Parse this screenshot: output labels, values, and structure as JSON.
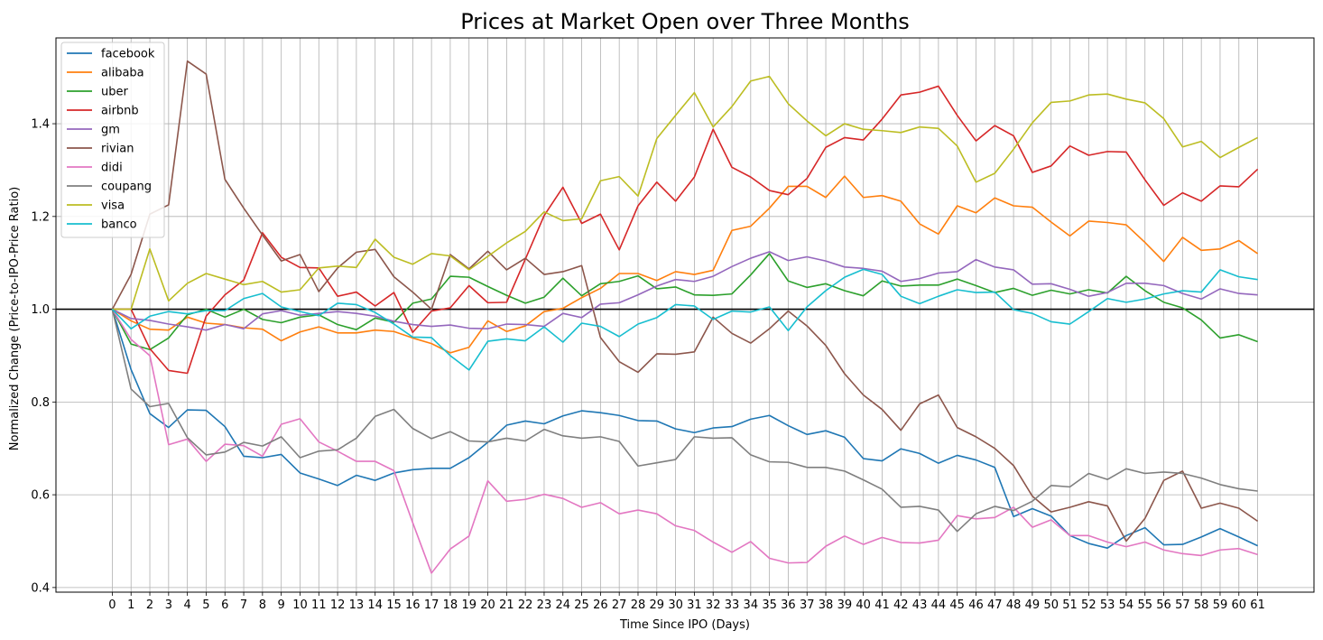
{
  "chart_data": {
    "type": "line",
    "title": "Prices at Market Open over Three Months",
    "xlabel": "Time Since IPO (Days)",
    "ylabel": "Normalized Change (Price-to-IPO-Price Ratio)",
    "xlim": [
      -3,
      64
    ],
    "ylim": [
      0.39,
      1.585
    ],
    "yticks": [
      0.4,
      0.6,
      0.8,
      1.0,
      1.2,
      1.4
    ],
    "ytick_labels": [
      "0.4",
      "0.6",
      "0.8",
      "1.0",
      "1.2",
      "1.4"
    ],
    "x": [
      0,
      1,
      2,
      3,
      4,
      5,
      6,
      7,
      8,
      9,
      10,
      11,
      12,
      13,
      14,
      15,
      16,
      17,
      18,
      19,
      20,
      21,
      22,
      23,
      24,
      25,
      26,
      27,
      28,
      29,
      30,
      31,
      32,
      33,
      34,
      35,
      36,
      37,
      38,
      39,
      40,
      41,
      42,
      43,
      44,
      45,
      46,
      47,
      48,
      49,
      50,
      51,
      52,
      53,
      54,
      55,
      56,
      57,
      58,
      59,
      60,
      61
    ],
    "x_tick_labels": [
      "0",
      "1",
      "2",
      "3",
      "4",
      "5",
      "6",
      "7",
      "8",
      "9",
      "10",
      "11",
      "12",
      "13",
      "14",
      "15",
      "16",
      "17",
      "18",
      "19",
      "20",
      "21",
      "22",
      "23",
      "24",
      "25",
      "26",
      "27",
      "28",
      "29",
      "30",
      "31",
      "32",
      "33",
      "34",
      "35",
      "36",
      "37",
      "38",
      "39",
      "40",
      "41",
      "42",
      "43",
      "44",
      "45",
      "46",
      "47",
      "48",
      "49",
      "50",
      "51",
      "52",
      "53",
      "54",
      "55",
      "56",
      "57",
      "58",
      "59",
      "60",
      "61"
    ],
    "grid": true,
    "legend_position": "upper-left",
    "reference_line": 1.0,
    "series": [
      {
        "name": "facebook",
        "color": "#1f77b4",
        "values": [
          1.0,
          0.87,
          0.775,
          0.745,
          0.783,
          0.782,
          0.747,
          0.683,
          0.68,
          0.687,
          0.647,
          0.634,
          0.62,
          0.642,
          0.631,
          0.647,
          0.654,
          0.657,
          0.657,
          0.68,
          0.713,
          0.75,
          0.759,
          0.753,
          0.77,
          0.781,
          0.777,
          0.771,
          0.76,
          0.759,
          0.742,
          0.734,
          0.744,
          0.747,
          0.763,
          0.771,
          0.749,
          0.73,
          0.738,
          0.724,
          0.678,
          0.673,
          0.699,
          0.689,
          0.668,
          0.685,
          0.675,
          0.659,
          0.553,
          0.57,
          0.554,
          0.512,
          0.495,
          0.485,
          0.512,
          0.529,
          0.492,
          0.493,
          0.509,
          0.527,
          0.509,
          0.49
        ]
      },
      {
        "name": "alibaba",
        "color": "#ff7f0e",
        "values": [
          1.0,
          0.975,
          0.957,
          0.955,
          0.983,
          0.97,
          0.967,
          0.96,
          0.957,
          0.932,
          0.951,
          0.962,
          0.949,
          0.949,
          0.955,
          0.952,
          0.938,
          0.926,
          0.906,
          0.918,
          0.975,
          0.952,
          0.964,
          0.995,
          1.002,
          1.025,
          1.045,
          1.077,
          1.077,
          1.062,
          1.081,
          1.075,
          1.084,
          1.17,
          1.179,
          1.218,
          1.265,
          1.265,
          1.241,
          1.287,
          1.241,
          1.245,
          1.233,
          1.184,
          1.162,
          1.223,
          1.208,
          1.24,
          1.223,
          1.22,
          1.188,
          1.158,
          1.19,
          1.187,
          1.182,
          1.144,
          1.103,
          1.155,
          1.127,
          1.13,
          1.148,
          1.12
        ]
      },
      {
        "name": "uber",
        "color": "#2ca02c",
        "values": [
          1.0,
          0.925,
          0.913,
          0.938,
          0.988,
          1.0,
          0.983,
          1.0,
          0.978,
          0.971,
          0.983,
          0.988,
          0.967,
          0.956,
          0.981,
          0.972,
          1.013,
          1.022,
          1.071,
          1.069,
          1.049,
          1.03,
          1.013,
          1.026,
          1.067,
          1.029,
          1.055,
          1.06,
          1.072,
          1.044,
          1.048,
          1.031,
          1.03,
          1.033,
          1.074,
          1.12,
          1.061,
          1.047,
          1.055,
          1.04,
          1.029,
          1.061,
          1.05,
          1.052,
          1.052,
          1.065,
          1.051,
          1.036,
          1.045,
          1.03,
          1.041,
          1.033,
          1.042,
          1.035,
          1.071,
          1.04,
          1.015,
          1.003,
          0.977,
          0.938,
          0.945,
          0.93
        ]
      },
      {
        "name": "airbnb",
        "color": "#d62728",
        "values": [
          1.0,
          1.0,
          0.915,
          0.868,
          0.862,
          0.985,
          1.031,
          1.063,
          1.165,
          1.112,
          1.09,
          1.089,
          1.028,
          1.037,
          1.007,
          1.036,
          0.95,
          0.996,
          1.003,
          1.051,
          1.014,
          1.015,
          1.108,
          1.202,
          1.263,
          1.185,
          1.205,
          1.128,
          1.223,
          1.274,
          1.233,
          1.285,
          1.388,
          1.306,
          1.285,
          1.256,
          1.247,
          1.282,
          1.349,
          1.37,
          1.365,
          1.41,
          1.462,
          1.468,
          1.481,
          1.418,
          1.363,
          1.396,
          1.374,
          1.295,
          1.309,
          1.352,
          1.332,
          1.34,
          1.339,
          1.279,
          1.224,
          1.251,
          1.233,
          1.266,
          1.264,
          1.302
        ]
      },
      {
        "name": "gm",
        "color": "#9467bd",
        "values": [
          1.0,
          0.98,
          0.976,
          0.968,
          0.962,
          0.955,
          0.967,
          0.958,
          0.99,
          0.997,
          0.987,
          0.991,
          0.995,
          0.991,
          0.985,
          0.974,
          0.967,
          0.963,
          0.966,
          0.959,
          0.958,
          0.968,
          0.967,
          0.963,
          0.991,
          0.982,
          1.011,
          1.014,
          1.031,
          1.05,
          1.064,
          1.06,
          1.071,
          1.092,
          1.11,
          1.124,
          1.105,
          1.113,
          1.104,
          1.091,
          1.088,
          1.082,
          1.06,
          1.066,
          1.078,
          1.081,
          1.107,
          1.091,
          1.085,
          1.054,
          1.055,
          1.043,
          1.028,
          1.036,
          1.056,
          1.056,
          1.051,
          1.034,
          1.022,
          1.044,
          1.034,
          1.031
        ]
      },
      {
        "name": "rivian",
        "color": "#8c564b",
        "values": [
          1.0,
          1.075,
          1.205,
          1.225,
          1.535,
          1.507,
          1.28,
          1.218,
          1.16,
          1.104,
          1.118,
          1.038,
          1.089,
          1.123,
          1.129,
          1.07,
          1.037,
          1.0,
          1.118,
          1.087,
          1.125,
          1.085,
          1.11,
          1.075,
          1.081,
          1.094,
          0.939,
          0.887,
          0.864,
          0.904,
          0.903,
          0.908,
          0.983,
          0.948,
          0.927,
          0.958,
          0.996,
          0.964,
          0.922,
          0.861,
          0.815,
          0.784,
          0.739,
          0.796,
          0.815,
          0.745,
          0.725,
          0.7,
          0.663,
          0.597,
          0.563,
          0.573,
          0.585,
          0.576,
          0.5,
          0.549,
          0.631,
          0.651,
          0.571,
          0.582,
          0.571,
          0.543
        ]
      },
      {
        "name": "didi",
        "color": "#e377c2",
        "values": [
          1.0,
          0.935,
          0.9,
          0.708,
          0.72,
          0.672,
          0.709,
          0.706,
          0.683,
          0.752,
          0.764,
          0.714,
          0.694,
          0.672,
          0.672,
          0.652,
          0.54,
          0.431,
          0.483,
          0.511,
          0.63,
          0.586,
          0.59,
          0.601,
          0.592,
          0.573,
          0.583,
          0.559,
          0.567,
          0.559,
          0.533,
          0.523,
          0.498,
          0.476,
          0.499,
          0.463,
          0.453,
          0.454,
          0.489,
          0.511,
          0.493,
          0.508,
          0.497,
          0.496,
          0.502,
          0.555,
          0.548,
          0.551,
          0.573,
          0.53,
          0.546,
          0.512,
          0.512,
          0.498,
          0.488,
          0.498,
          0.481,
          0.473,
          0.469,
          0.481,
          0.484,
          0.471
        ]
      },
      {
        "name": "coupang",
        "color": "#7f7f7f",
        "values": [
          1.0,
          0.828,
          0.79,
          0.797,
          0.723,
          0.686,
          0.692,
          0.713,
          0.705,
          0.725,
          0.68,
          0.694,
          0.697,
          0.722,
          0.769,
          0.784,
          0.743,
          0.721,
          0.736,
          0.716,
          0.714,
          0.722,
          0.716,
          0.741,
          0.727,
          0.722,
          0.725,
          0.715,
          0.662,
          0.669,
          0.676,
          0.725,
          0.722,
          0.723,
          0.686,
          0.671,
          0.67,
          0.659,
          0.659,
          0.651,
          0.632,
          0.612,
          0.573,
          0.575,
          0.567,
          0.521,
          0.559,
          0.575,
          0.566,
          0.586,
          0.62,
          0.617,
          0.646,
          0.633,
          0.656,
          0.646,
          0.649,
          0.646,
          0.636,
          0.622,
          0.613,
          0.608
        ]
      },
      {
        "name": "visa",
        "color": "#bcbd22",
        "values": [
          1.0,
          1.0,
          1.13,
          1.018,
          1.056,
          1.077,
          1.065,
          1.053,
          1.06,
          1.037,
          1.042,
          1.089,
          1.093,
          1.09,
          1.151,
          1.112,
          1.097,
          1.12,
          1.115,
          1.085,
          1.114,
          1.143,
          1.168,
          1.21,
          1.191,
          1.195,
          1.277,
          1.286,
          1.244,
          1.368,
          1.418,
          1.467,
          1.393,
          1.437,
          1.492,
          1.502,
          1.443,
          1.406,
          1.374,
          1.4,
          1.388,
          1.385,
          1.381,
          1.393,
          1.39,
          1.352,
          1.274,
          1.293,
          1.345,
          1.402,
          1.446,
          1.449,
          1.462,
          1.464,
          1.453,
          1.445,
          1.411,
          1.35,
          1.362,
          1.327,
          1.349,
          1.37
        ]
      },
      {
        "name": "banco",
        "color": "#17becf",
        "values": [
          1.0,
          0.958,
          0.985,
          0.995,
          0.99,
          0.997,
          0.997,
          1.023,
          1.034,
          1.005,
          0.995,
          0.986,
          1.013,
          1.01,
          0.993,
          0.968,
          0.94,
          0.939,
          0.9,
          0.869,
          0.931,
          0.936,
          0.932,
          0.962,
          0.929,
          0.97,
          0.963,
          0.941,
          0.968,
          0.982,
          1.01,
          1.007,
          0.978,
          0.996,
          0.994,
          1.005,
          0.954,
          1.005,
          1.04,
          1.069,
          1.086,
          1.075,
          1.028,
          1.012,
          1.028,
          1.042,
          1.036,
          1.037,
          0.999,
          0.991,
          0.973,
          0.968,
          0.995,
          1.023,
          1.015,
          1.022,
          1.033,
          1.04,
          1.037,
          1.085,
          1.07,
          1.064
        ]
      }
    ]
  }
}
